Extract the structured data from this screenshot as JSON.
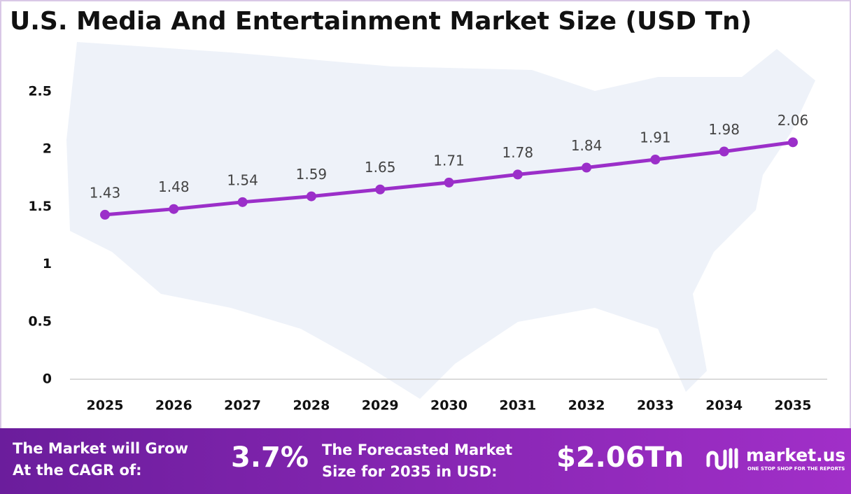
{
  "chart_data": {
    "type": "line",
    "title": "U.S. Media And Entertainment Market Size (USD Tn)",
    "categories": [
      "2025",
      "2026",
      "2027",
      "2028",
      "2029",
      "2030",
      "2031",
      "2032",
      "2033",
      "2034",
      "2035"
    ],
    "series": [
      {
        "name": "Market Size",
        "color": "#9b2fc9",
        "values": [
          1.43,
          1.48,
          1.54,
          1.59,
          1.65,
          1.71,
          1.78,
          1.84,
          1.91,
          1.98,
          2.06
        ]
      }
    ],
    "ylim": [
      0,
      2.5
    ],
    "yticks": [
      0,
      0.5,
      1,
      1.5,
      2,
      2.5
    ],
    "grid": false
  },
  "footer": {
    "cagr_label": [
      "The Market will Grow",
      "At the CAGR of:"
    ],
    "cagr_value": "3.7%",
    "forecast_label": [
      "The Forecasted Market",
      "Size for 2035 in USD:"
    ],
    "forecast_value": "$2.06Tn",
    "brand": "market.us",
    "tagline": "ONE STOP SHOP FOR THE REPORTS"
  }
}
